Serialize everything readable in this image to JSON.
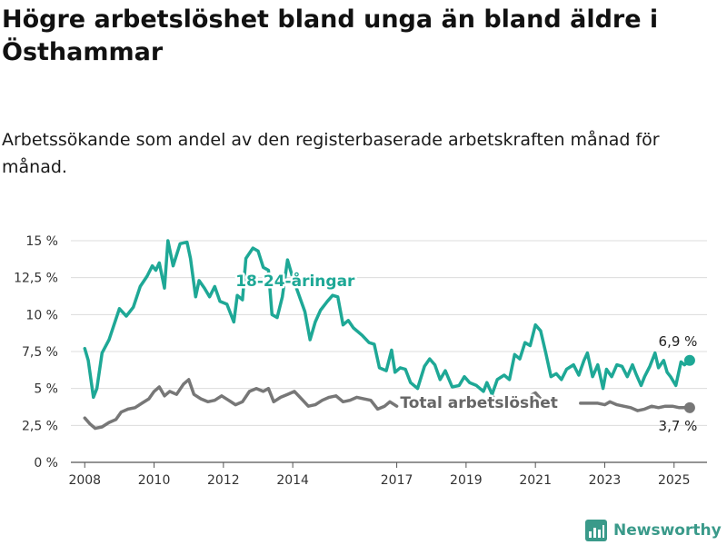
{
  "title": "Högre arbetslöshet bland unga än bland äldre i Östhammar",
  "subtitle": "Arbetssökande som andel av den registerbaserade arbetskraften månad för månad.",
  "brand": {
    "name": "Newsworthy",
    "icon": "bar-chart-logo-icon"
  },
  "chart_data": {
    "type": "line",
    "ylim": [
      0,
      15
    ],
    "xlim": [
      2007.6,
      2025.95
    ],
    "y_ticks": [
      {
        "value": 0,
        "label": "0 %"
      },
      {
        "value": 2.5,
        "label": "2,5 %"
      },
      {
        "value": 5,
        "label": "5 %"
      },
      {
        "value": 7.5,
        "label": "7,5 %"
      },
      {
        "value": 10,
        "label": "10 %"
      },
      {
        "value": 12.5,
        "label": "12,5 %"
      },
      {
        "value": 15,
        "label": "15 %"
      }
    ],
    "x_ticks": [
      {
        "value": 2008,
        "label": "2008"
      },
      {
        "value": 2010,
        "label": "2010"
      },
      {
        "value": 2012,
        "label": "2012"
      },
      {
        "value": 2014,
        "label": "2014"
      },
      {
        "value": 2017,
        "label": "2017"
      },
      {
        "value": 2019,
        "label": "2019"
      },
      {
        "value": 2021,
        "label": "2021"
      },
      {
        "value": 2023,
        "label": "2023"
      },
      {
        "value": 2025,
        "label": "2025"
      }
    ],
    "grid": true,
    "series": [
      {
        "name": "18-24-åringar",
        "color": "#1ea896",
        "end_label": "6,9 %",
        "points": [
          [
            2008.0,
            7.7
          ],
          [
            2008.1,
            6.9
          ],
          [
            2008.25,
            4.4
          ],
          [
            2008.35,
            5.0
          ],
          [
            2008.5,
            7.4
          ],
          [
            2008.7,
            8.3
          ],
          [
            2008.9,
            9.7
          ],
          [
            2009.0,
            10.4
          ],
          [
            2009.2,
            9.9
          ],
          [
            2009.4,
            10.5
          ],
          [
            2009.6,
            11.9
          ],
          [
            2009.8,
            12.6
          ],
          [
            2009.95,
            13.3
          ],
          [
            2010.05,
            13.0
          ],
          [
            2010.15,
            13.5
          ],
          [
            2010.3,
            11.8
          ],
          [
            2010.4,
            15.0
          ],
          [
            2010.55,
            13.3
          ],
          [
            2010.75,
            14.8
          ],
          [
            2010.95,
            14.9
          ],
          [
            2011.05,
            13.8
          ],
          [
            2011.2,
            11.2
          ],
          [
            2011.3,
            12.3
          ],
          [
            2011.45,
            11.8
          ],
          [
            2011.6,
            11.2
          ],
          [
            2011.75,
            11.9
          ],
          [
            2011.9,
            10.9
          ],
          [
            2012.1,
            10.7
          ],
          [
            2012.3,
            9.5
          ],
          [
            2012.4,
            11.3
          ],
          [
            2012.55,
            11.0
          ],
          [
            2012.65,
            13.8
          ],
          [
            2012.85,
            14.5
          ],
          [
            2013.0,
            14.3
          ],
          [
            2013.15,
            13.2
          ],
          [
            2013.3,
            13.0
          ],
          [
            2013.4,
            10.0
          ],
          [
            2013.55,
            9.8
          ],
          [
            2013.7,
            11.2
          ],
          [
            2013.85,
            13.7
          ],
          [
            2014.0,
            12.5
          ],
          [
            2014.15,
            11.5
          ],
          [
            2014.35,
            10.2
          ],
          [
            2014.5,
            8.3
          ],
          [
            2014.65,
            9.5
          ],
          [
            2014.8,
            10.3
          ],
          [
            2015.0,
            10.9
          ],
          [
            2015.15,
            11.3
          ],
          [
            2015.3,
            11.2
          ],
          [
            2015.45,
            9.3
          ],
          [
            2015.6,
            9.6
          ],
          [
            2015.75,
            9.1
          ],
          [
            2016.0,
            8.6
          ],
          [
            2016.2,
            8.1
          ],
          [
            2016.35,
            8.0
          ],
          [
            2016.5,
            6.4
          ],
          [
            2016.7,
            6.2
          ],
          [
            2016.85,
            7.6
          ],
          [
            2016.95,
            6.1
          ],
          [
            2017.1,
            6.4
          ],
          [
            2017.25,
            6.3
          ],
          [
            2017.4,
            5.4
          ],
          [
            2017.6,
            5.0
          ],
          [
            2017.8,
            6.5
          ],
          [
            2017.95,
            7.0
          ],
          [
            2018.1,
            6.6
          ],
          [
            2018.25,
            5.6
          ],
          [
            2018.4,
            6.2
          ],
          [
            2018.6,
            5.1
          ],
          [
            2018.8,
            5.2
          ],
          [
            2018.95,
            5.8
          ],
          [
            2019.1,
            5.4
          ],
          [
            2019.3,
            5.2
          ],
          [
            2019.5,
            4.8
          ],
          [
            2019.6,
            5.4
          ],
          [
            2019.75,
            4.6
          ],
          [
            2019.9,
            5.6
          ],
          [
            2020.1,
            5.9
          ],
          [
            2020.25,
            5.6
          ],
          [
            2020.4,
            7.3
          ],
          [
            2020.55,
            7.0
          ],
          [
            2020.7,
            8.1
          ],
          [
            2020.85,
            7.9
          ],
          [
            2021.0,
            9.3
          ],
          [
            2021.15,
            8.9
          ],
          [
            2021.3,
            7.4
          ],
          [
            2021.45,
            5.8
          ],
          [
            2021.6,
            6.0
          ],
          [
            2021.75,
            5.6
          ],
          [
            2021.9,
            6.3
          ],
          [
            2022.1,
            6.6
          ],
          [
            2022.25,
            5.9
          ],
          [
            2022.4,
            6.9
          ],
          [
            2022.5,
            7.4
          ],
          [
            2022.65,
            5.8
          ],
          [
            2022.8,
            6.6
          ],
          [
            2022.95,
            5.0
          ],
          [
            2023.05,
            6.3
          ],
          [
            2023.2,
            5.8
          ],
          [
            2023.35,
            6.6
          ],
          [
            2023.5,
            6.5
          ],
          [
            2023.65,
            5.8
          ],
          [
            2023.8,
            6.6
          ],
          [
            2023.9,
            6.0
          ],
          [
            2024.05,
            5.2
          ],
          [
            2024.15,
            5.8
          ],
          [
            2024.3,
            6.5
          ],
          [
            2024.45,
            7.4
          ],
          [
            2024.55,
            6.4
          ],
          [
            2024.7,
            6.9
          ],
          [
            2024.8,
            6.1
          ],
          [
            2024.9,
            5.8
          ],
          [
            2025.05,
            5.2
          ],
          [
            2025.2,
            6.8
          ],
          [
            2025.3,
            6.6
          ],
          [
            2025.45,
            6.9
          ]
        ]
      },
      {
        "name": "Total arbetslöshet",
        "color": "#777777",
        "end_label": "3,7 %",
        "points": [
          [
            2008.0,
            3.0
          ],
          [
            2008.15,
            2.6
          ],
          [
            2008.3,
            2.3
          ],
          [
            2008.5,
            2.4
          ],
          [
            2008.7,
            2.7
          ],
          [
            2008.9,
            2.9
          ],
          [
            2009.05,
            3.4
          ],
          [
            2009.25,
            3.6
          ],
          [
            2009.45,
            3.7
          ],
          [
            2009.65,
            4.0
          ],
          [
            2009.85,
            4.3
          ],
          [
            2010.0,
            4.8
          ],
          [
            2010.15,
            5.1
          ],
          [
            2010.3,
            4.5
          ],
          [
            2010.45,
            4.8
          ],
          [
            2010.65,
            4.6
          ],
          [
            2010.85,
            5.3
          ],
          [
            2011.0,
            5.6
          ],
          [
            2011.15,
            4.6
          ],
          [
            2011.35,
            4.3
          ],
          [
            2011.55,
            4.1
          ],
          [
            2011.75,
            4.2
          ],
          [
            2011.95,
            4.5
          ],
          [
            2012.15,
            4.2
          ],
          [
            2012.35,
            3.9
          ],
          [
            2012.55,
            4.1
          ],
          [
            2012.75,
            4.8
          ],
          [
            2012.95,
            5.0
          ],
          [
            2013.15,
            4.8
          ],
          [
            2013.3,
            5.0
          ],
          [
            2013.45,
            4.1
          ],
          [
            2013.65,
            4.4
          ],
          [
            2013.85,
            4.6
          ],
          [
            2014.05,
            4.8
          ],
          [
            2014.25,
            4.3
          ],
          [
            2014.45,
            3.8
          ],
          [
            2014.65,
            3.9
          ],
          [
            2014.85,
            4.2
          ],
          [
            2015.05,
            4.4
          ],
          [
            2015.25,
            4.5
          ],
          [
            2015.45,
            4.1
          ],
          [
            2015.65,
            4.2
          ],
          [
            2015.85,
            4.4
          ],
          [
            2016.05,
            4.3
          ],
          [
            2016.25,
            4.2
          ],
          [
            2016.45,
            3.6
          ],
          [
            2016.65,
            3.8
          ],
          [
            2016.8,
            4.1
          ],
          [
            2017.0,
            3.8
          ]
        ],
        "points_tail": [
          [
            2019.75,
            4.5
          ],
          [
            2019.85,
            4.2
          ],
          [
            2020.85,
            4.5
          ],
          [
            2021.0,
            4.7
          ],
          [
            2021.15,
            4.3
          ],
          [
            2022.3,
            4.0
          ],
          [
            2022.6,
            4.0
          ],
          [
            2022.8,
            4.0
          ],
          [
            2023.0,
            3.9
          ],
          [
            2023.15,
            4.1
          ],
          [
            2023.35,
            3.9
          ],
          [
            2023.55,
            3.8
          ],
          [
            2023.75,
            3.7
          ],
          [
            2023.95,
            3.5
          ],
          [
            2024.15,
            3.6
          ],
          [
            2024.35,
            3.8
          ],
          [
            2024.55,
            3.7
          ],
          [
            2024.75,
            3.8
          ],
          [
            2024.95,
            3.8
          ],
          [
            2025.15,
            3.7
          ],
          [
            2025.3,
            3.7
          ],
          [
            2025.45,
            3.7
          ]
        ]
      }
    ],
    "annotations": [
      {
        "text": "18-24-åringar",
        "color": "#1ea896",
        "x": 2012.35,
        "y": 12.3
      },
      {
        "text": "Total arbetslöshet",
        "color": "#666666",
        "x": 2017.1,
        "y": 4.05
      }
    ]
  }
}
